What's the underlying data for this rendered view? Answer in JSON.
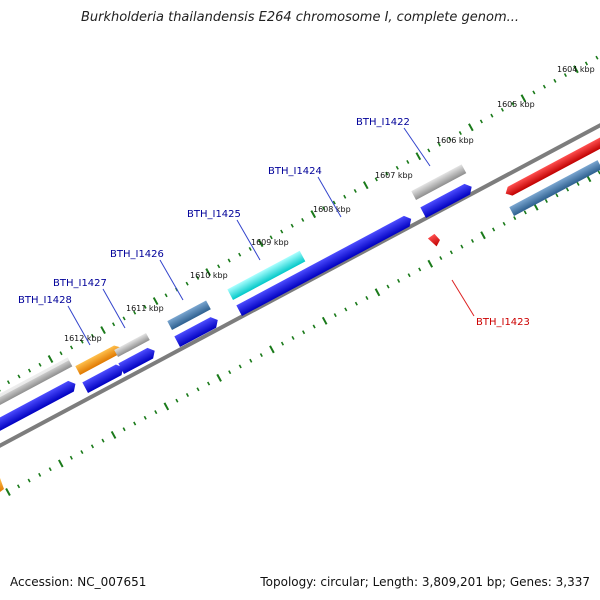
{
  "title": "Burkholderia thailandensis E264 chromosome I, complete genom...",
  "footer": {
    "accession": "Accession: NC_007651",
    "topology": "Topology: circular; Length: 3,809,201 bp; Genes: 3,337"
  },
  "colors": {
    "gene_blue": "#0000ee",
    "gene_grey": "#b4b4b4",
    "gene_steel": "#4a7fb0",
    "gene_orange": "#ff9900",
    "gene_cyan": "#22e8e8",
    "gene_red": "#ee0000",
    "tick_green": "#1a7a1a",
    "backbone": "#808080",
    "label_blue": "#000099",
    "label_red": "#cc0000"
  },
  "scale_labels": [
    "1604 kbp",
    "1605 kbp",
    "1606 kbp",
    "1607 kbp",
    "1608 kbp",
    "1609 kbp",
    "1610 kbp",
    "1611 kbp",
    "1612 kbp"
  ],
  "gene_labels": [
    {
      "text": "BTH_I1422",
      "color": "blue"
    },
    {
      "text": "BTH_I1423",
      "color": "red"
    },
    {
      "text": "BTH_I1424",
      "color": "blue"
    },
    {
      "text": "BTH_I1425",
      "color": "blue"
    },
    {
      "text": "BTH_I1426",
      "color": "blue"
    },
    {
      "text": "BTH_I1427",
      "color": "blue"
    },
    {
      "text": "BTH_I1428",
      "color": "blue"
    }
  ]
}
